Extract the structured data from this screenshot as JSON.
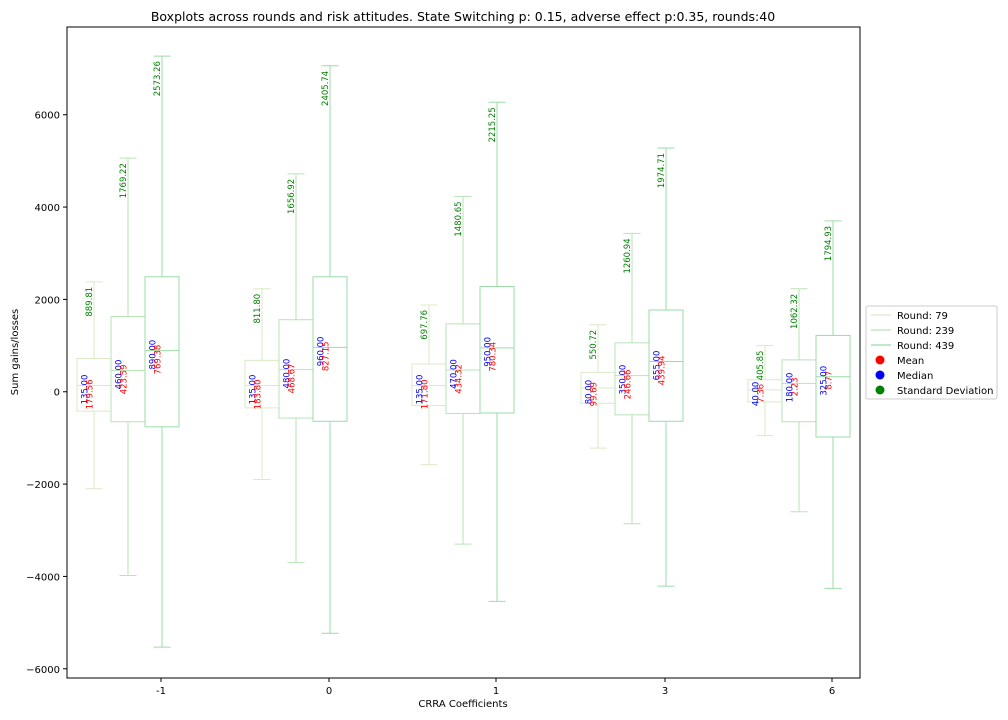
{
  "chart_data": {
    "type": "box",
    "title": "Boxplots across rounds and risk attitudes. State Switching p: 0.15, adverse effect p:0.35, rounds:40",
    "xlabel": "CRRA Coefficients",
    "ylabel": "Sum gains/losses",
    "ylim": [
      -6200,
      7900
    ],
    "yticks": [
      -6000,
      -4000,
      -2000,
      0,
      2000,
      4000,
      6000
    ],
    "yticklabels": [
      "−6000",
      "−4000",
      "−2000",
      "0",
      "2000",
      "4000",
      "6000"
    ],
    "categories": [
      "-1",
      "0",
      "1",
      "3",
      "6"
    ],
    "legend_position": "center-right",
    "series": [
      {
        "name": "Round: 79",
        "color": "#d9eac6",
        "boxes": [
          {
            "whislo": -2100,
            "q1": -420,
            "med": 135,
            "q3": 720,
            "whishi": 2380,
            "mean_label": "179.56",
            "median_label": "135.00",
            "std_label": "889.81"
          },
          {
            "whislo": -1900,
            "q1": -350,
            "med": 135,
            "q3": 680,
            "whishi": 2230,
            "mean_label": "183.80",
            "median_label": "135.00",
            "std_label": "811.80"
          },
          {
            "whislo": -1580,
            "q1": -300,
            "med": 135,
            "q3": 600,
            "whishi": 1880,
            "mean_label": "171.80",
            "median_label": "135.00",
            "std_label": "697.76"
          },
          {
            "whislo": -1220,
            "q1": -250,
            "med": 80,
            "q3": 420,
            "whishi": 1450,
            "mean_label": "99.69",
            "median_label": "80.00",
            "std_label": "550.72"
          },
          {
            "whislo": -950,
            "q1": -220,
            "med": 40,
            "q3": 260,
            "whishi": 1000,
            "mean_label": "7.36",
            "median_label": "40.00",
            "std_label": "405.85"
          }
        ]
      },
      {
        "name": "Round: 239",
        "color": "#b9e3b9",
        "boxes": [
          {
            "whislo": -3980,
            "q1": -650,
            "med": 460,
            "q3": 1630,
            "whishi": 5060,
            "mean_label": "423.59",
            "median_label": "460.00",
            "std_label": "1769.22"
          },
          {
            "whislo": -3700,
            "q1": -570,
            "med": 480,
            "q3": 1560,
            "whishi": 4720,
            "mean_label": "468.67",
            "median_label": "480.00",
            "std_label": "1656.92"
          },
          {
            "whislo": -3300,
            "q1": -470,
            "med": 470,
            "q3": 1470,
            "whishi": 4230,
            "mean_label": "434.32",
            "median_label": "470.00",
            "std_label": "1480.65"
          },
          {
            "whislo": -2860,
            "q1": -500,
            "med": 350,
            "q3": 1060,
            "whishi": 3430,
            "mean_label": "246.66",
            "median_label": "350.00",
            "std_label": "1260.94"
          },
          {
            "whislo": -2600,
            "q1": -650,
            "med": 180,
            "q3": 690,
            "whishi": 2230,
            "mean_label": "2.23",
            "median_label": "180.00",
            "std_label": "1062.32"
          }
        ]
      },
      {
        "name": "Round: 439",
        "color": "#9bdca7",
        "boxes": [
          {
            "whislo": -5530,
            "q1": -760,
            "med": 890,
            "q3": 2490,
            "whishi": 7270,
            "mean_label": "769.38",
            "median_label": "890.00",
            "std_label": "2573.26"
          },
          {
            "whislo": -5230,
            "q1": -640,
            "med": 960,
            "q3": 2490,
            "whishi": 7060,
            "mean_label": "827.15",
            "median_label": "960.00",
            "std_label": "2405.74"
          },
          {
            "whislo": -4540,
            "q1": -460,
            "med": 950,
            "q3": 2280,
            "whishi": 6270,
            "mean_label": "780.34",
            "median_label": "950.00",
            "std_label": "2215.25"
          },
          {
            "whislo": -4210,
            "q1": -640,
            "med": 655,
            "q3": 1770,
            "whishi": 5280,
            "mean_label": "439.94",
            "median_label": "655.00",
            "std_label": "1974.71"
          },
          {
            "whislo": -4260,
            "q1": -980,
            "med": 325,
            "q3": 1220,
            "whishi": 3700,
            "mean_label": "8.77",
            "median_label": "325.00",
            "std_label": "1794.93"
          }
        ]
      }
    ],
    "stat_legend": [
      {
        "label": "Mean",
        "color": "#ff0000"
      },
      {
        "label": "Median",
        "color": "#0000ff"
      },
      {
        "label": "Standard Deviation",
        "color": "#008000"
      }
    ]
  }
}
